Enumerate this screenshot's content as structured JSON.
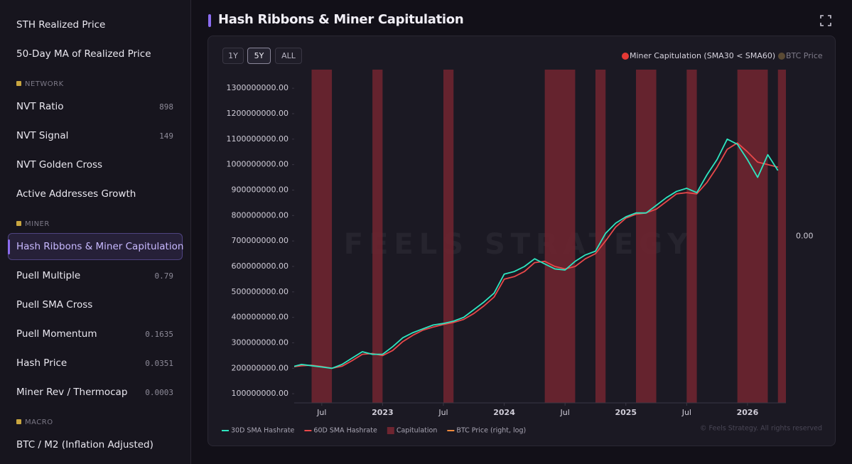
{
  "sidebar": [
    {
      "label": "STH Realized Price"
    },
    {
      "label": "50-Day MA of Realized Price"
    },
    {
      "section": "NETWORK"
    },
    {
      "label": "NVT Ratio",
      "value": "898"
    },
    {
      "label": "NVT Signal",
      "value": "149"
    },
    {
      "label": "NVT Golden Cross"
    },
    {
      "label": "Active Addresses Growth"
    },
    {
      "section": "MINER"
    },
    {
      "label": "Hash Ribbons & Miner Capitulation",
      "active": true
    },
    {
      "label": "Puell Multiple",
      "value": "0.79"
    },
    {
      "label": "Puell SMA Cross"
    },
    {
      "label": "Puell Momentum",
      "value": "0.1635"
    },
    {
      "label": "Hash Price",
      "value": "0.0351"
    },
    {
      "label": "Miner Rev / Thermocap",
      "value": "0.0003"
    },
    {
      "section": "MACRO"
    },
    {
      "label": "BTC / M2 (Inflation Adjusted)"
    }
  ],
  "header": {
    "title": "Hash Ribbons & Miner Capitulation"
  },
  "range_buttons": [
    "1Y",
    "5Y",
    "ALL"
  ],
  "selected_range": "5Y",
  "top_legend": [
    {
      "name": "Miner Capitulation (SMA30 < SMA60)",
      "color": "#e53935"
    },
    {
      "name": "BTC Price",
      "color": "#5a4a34"
    }
  ],
  "watermark": "FEELS STRATEGY",
  "copyright": "© Feels Strategy. All rights reserved",
  "chart_data": {
    "type": "line",
    "x": [
      "2022-04",
      "2022-05",
      "2022-06",
      "2022-07",
      "2022-08",
      "2022-09",
      "2022-10",
      "2022-11",
      "2022-12",
      "2023-01",
      "2023-02",
      "2023-03",
      "2023-04",
      "2023-05",
      "2023-06",
      "2023-07",
      "2023-08",
      "2023-09",
      "2023-10",
      "2023-11",
      "2023-12",
      "2024-01",
      "2024-02",
      "2024-03",
      "2024-04",
      "2024-05",
      "2024-06",
      "2024-07",
      "2024-08",
      "2024-09",
      "2024-10",
      "2024-11",
      "2024-12",
      "2025-01",
      "2025-02",
      "2025-03",
      "2025-04",
      "2025-05",
      "2025-06",
      "2025-07",
      "2025-08",
      "2025-09",
      "2025-10",
      "2025-11",
      "2025-12",
      "2026-01",
      "2026-02",
      "2026-03",
      "2026-04"
    ],
    "series": [
      {
        "name": "30D SMA Hashrate",
        "color": "#2ee6c0",
        "values": [
          205000000,
          215000000,
          210000000,
          205000000,
          200000000,
          215000000,
          240000000,
          265000000,
          255000000,
          255000000,
          285000000,
          320000000,
          340000000,
          355000000,
          370000000,
          376000000,
          385000000,
          400000000,
          430000000,
          460000000,
          495000000,
          570000000,
          580000000,
          600000000,
          630000000,
          610000000,
          590000000,
          586000000,
          620000000,
          645000000,
          660000000,
          730000000,
          770000000,
          795000000,
          810000000,
          810000000,
          840000000,
          870000000,
          895000000,
          907000000,
          890000000,
          960000000,
          1020000000,
          1100000000,
          1080000000,
          1019000000,
          950000000,
          1039000000,
          977000000
        ]
      },
      {
        "name": "60D SMA Hashrate",
        "color": "#e8484a",
        "values": [
          205000000,
          210000000,
          212000000,
          207000000,
          200000000,
          208000000,
          230000000,
          255000000,
          258000000,
          250000000,
          270000000,
          305000000,
          330000000,
          350000000,
          362000000,
          372000000,
          380000000,
          392000000,
          415000000,
          445000000,
          480000000,
          550000000,
          560000000,
          580000000,
          615000000,
          620000000,
          600000000,
          590000000,
          600000000,
          630000000,
          650000000,
          700000000,
          755000000,
          790000000,
          805000000,
          810000000,
          825000000,
          855000000,
          885000000,
          890000000,
          885000000,
          930000000,
          990000000,
          1060000000,
          1085000000,
          1050000000,
          1010000000,
          1000000000,
          990000000
        ]
      }
    ],
    "bands": {
      "name": "Capitulation",
      "color": "#6e2530",
      "ranges": [
        [
          "2022-06",
          "2022-08"
        ],
        [
          "2022-12",
          "2023-01"
        ],
        [
          "2023-07",
          "2023-08"
        ],
        [
          "2024-05",
          "2024-08"
        ],
        [
          "2024-10",
          "2024-11"
        ],
        [
          "2025-02",
          "2025-04"
        ],
        [
          "2025-07",
          "2025-08"
        ],
        [
          "2025-12",
          "2026-03"
        ],
        [
          "2026-04",
          "2026-05"
        ]
      ]
    },
    "extra_legend": [
      {
        "name": "BTC Price (right, log)",
        "color": "#f08a3c"
      }
    ],
    "xlim": [
      "2022-04",
      "2026-05"
    ],
    "xticks": [
      {
        "value": "2022-07",
        "label": "Jul"
      },
      {
        "value": "2023-01",
        "label": "2023"
      },
      {
        "value": "2023-07",
        "label": "Jul"
      },
      {
        "value": "2024-01",
        "label": "2024"
      },
      {
        "value": "2024-07",
        "label": "Jul"
      },
      {
        "value": "2025-01",
        "label": "2025"
      },
      {
        "value": "2025-07",
        "label": "Jul"
      },
      {
        "value": "2026-01",
        "label": "2026"
      }
    ],
    "ylim": [
      64000000,
      1373000000
    ],
    "yticks": [
      {
        "value": 100000000,
        "label": "100000000.00"
      },
      {
        "value": 200000000,
        "label": "200000000.00"
      },
      {
        "value": 300000000,
        "label": "300000000.00"
      },
      {
        "value": 400000000,
        "label": "400000000.00"
      },
      {
        "value": 500000000,
        "label": "500000000.00"
      },
      {
        "value": 600000000,
        "label": "600000000.00"
      },
      {
        "value": 700000000,
        "label": "700000000.00"
      },
      {
        "value": 800000000,
        "label": "800000000.00"
      },
      {
        "value": 900000000,
        "label": "900000000.00"
      },
      {
        "value": 1000000000,
        "label": "1000000000.00"
      },
      {
        "value": 1100000000,
        "label": "1100000000.00"
      },
      {
        "value": 1200000000,
        "label": "1200000000.00"
      },
      {
        "value": 1300000000,
        "label": "1300000000.00"
      }
    ],
    "y2lim": [
      -1,
      1
    ],
    "y2ticks": [
      {
        "value": 0,
        "label": "0.00"
      }
    ],
    "grid": false
  }
}
